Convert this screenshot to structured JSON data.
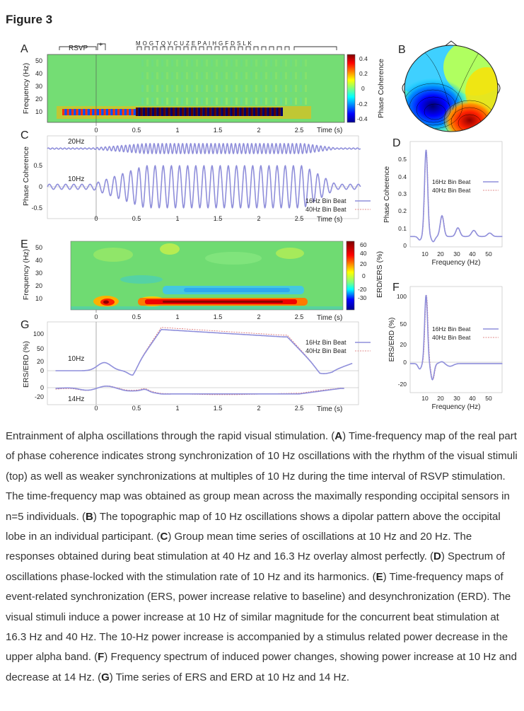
{
  "figure_title": "Figure 3",
  "colors": {
    "trace_16": "#8f8fdb",
    "trace_40": "#d96a6a",
    "grid_green": "#6fdb72"
  },
  "panel_letters": {
    "a": "A",
    "b": "B",
    "c": "C",
    "d": "D",
    "e": "E",
    "f": "F",
    "g": "G"
  },
  "panel_a": {
    "stim_rsvp": "RSVP",
    "stim_plus": "+",
    "stim_letters": "M O G T Q V C U Z E P A I H G F D S L K",
    "ylabel": "Frequency (Hz)",
    "yticks": [
      "50",
      "40",
      "30",
      "20",
      "10"
    ],
    "xticks": [
      "0",
      "0.5",
      "1",
      "1.5",
      "2",
      "2.5"
    ],
    "xlabel": "Time (s)",
    "colorbar_ticks": [
      "0.4",
      "0.2",
      "0",
      "-0.2",
      "-0.4"
    ],
    "colorbar_label": "Phase Coherence"
  },
  "panel_c": {
    "ylabel": "Phase Coherence",
    "yticks": [
      "0.5",
      "0",
      "-0.5"
    ],
    "label_20": "20Hz",
    "label_10": "10Hz",
    "xticks": [
      "0",
      "0.5",
      "1",
      "1.5",
      "2",
      "2.5"
    ],
    "xlabel": "Time (s)",
    "legend": [
      "16Hz Bin Beat",
      "40Hz Bin Beat"
    ]
  },
  "panel_d": {
    "ylabel": "Phase Coherence",
    "yticks": [
      "0.5",
      "0.4",
      "0.3",
      "0.2",
      "0.1",
      "0"
    ],
    "xticks": [
      "10",
      "20",
      "30",
      "40",
      "50"
    ],
    "xlabel": "Frequency (Hz)",
    "legend": [
      "16Hz Bin Beat",
      "40Hz Bin Beat"
    ]
  },
  "panel_e": {
    "ylabel": "Frequency (Hz)",
    "yticks": [
      "50",
      "40",
      "30",
      "20",
      "10"
    ],
    "xticks": [
      "0",
      "0.5",
      "1",
      "1.5",
      "2",
      "2.5"
    ],
    "xlabel": "Time (s)",
    "colorbar_ticks": [
      "60",
      "40",
      "20",
      "0",
      "-20",
      "-30"
    ],
    "colorbar_label": "ERD/ERS (%)"
  },
  "panel_f": {
    "ylabel": "ERS/ERD (%)",
    "yticks": [
      "100",
      "50",
      "20",
      "0",
      "-20"
    ],
    "xticks": [
      "10",
      "20",
      "30",
      "40",
      "50"
    ],
    "xlabel": "Frequency (Hz)",
    "legend": [
      "16Hz Bin Beat",
      "40Hz Bin Beat"
    ]
  },
  "panel_g": {
    "ylabel": "ERS/ERD (%)",
    "yticks_top": [
      "100",
      "50",
      "20",
      "0"
    ],
    "yticks_bottom": [
      "0",
      "-20"
    ],
    "label_10": "10Hz",
    "label_14": "14Hz",
    "xticks": [
      "0",
      "0.5",
      "1",
      "1.5",
      "2",
      "2.5"
    ],
    "xlabel": "Time (s)",
    "legend": [
      "16Hz Bin Beat",
      "40Hz Bin Beat"
    ]
  },
  "caption": {
    "intro": "Entrainment of alpha oscillations through the rapid visual stimulation. (",
    "a": "A",
    "a_text": ") Time-frequency map of the real part of phase coherence indicates strong synchronization of 10 Hz oscillations with the rhythm of the visual stimuli (top) as well as weaker synchronizations at multiples of 10 Hz during the time interval of RSVP stimulation. The time-frequency map was obtained as group mean across the maximally responding occipital sensors in n=5 individuals. (",
    "b": "B",
    "b_text": ") The topographic map of 10 Hz oscillations shows a dipolar pattern above the occipital lobe in an individual participant. (",
    "c": "C",
    "c_text": ") Group mean time series of oscillations at 10 Hz and 20 Hz. The responses obtained during beat stimulation at 40 Hz and 16.3 Hz overlay almost perfectly. (",
    "d": "D",
    "d_text": ") Spectrum of oscillations phase-locked with the stimulation rate of 10 Hz and its harmonics. (",
    "e": "E",
    "e_text": ") Time-frequency maps of event-related synchronization (ERS, power increase relative to baseline) and desynchronization (ERD). The visual stimuli induce a power increase at 10 Hz of similar magnitude for the concurrent beat stimulation at 16.3 Hz and 40 Hz. The 10-Hz power increase is accompanied by a stimulus related power decrease in the upper alpha band. (",
    "f": "F",
    "f_text": ") Frequency spectrum of induced power changes, showing power increase at 10 Hz and decrease at 14 Hz. (",
    "g": "G",
    "g_text": ") Time series of ERS and ERD at 10 Hz and 14 Hz."
  }
}
